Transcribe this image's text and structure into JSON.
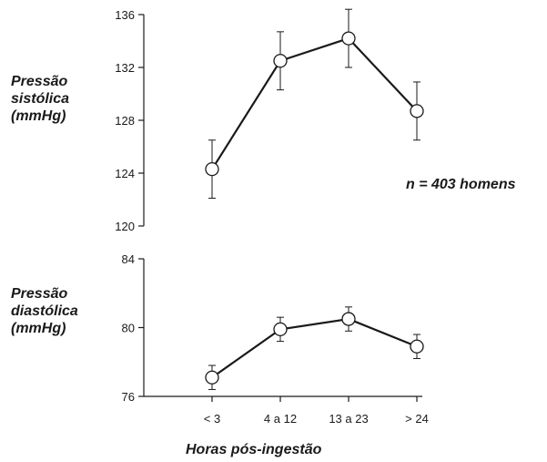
{
  "chart_data": [
    {
      "type": "line",
      "ylabel": "Pressão\nsistólica\n(mmHg)",
      "categories": [
        "< 3",
        "4 a 12",
        "13 a 23",
        "> 24"
      ],
      "values": [
        124.3,
        132.5,
        134.2,
        128.7
      ],
      "error_low": [
        122.1,
        130.3,
        132.0,
        126.5
      ],
      "error_high": [
        126.5,
        134.7,
        136.4,
        130.9
      ],
      "ylim": [
        120,
        136
      ],
      "yticks": [
        "120",
        "124",
        "128",
        "132",
        "136"
      ],
      "annotation": "n = 403 homens"
    },
    {
      "type": "line",
      "ylabel": "Pressão\ndiastólica\n(mmHg)",
      "categories": [
        "< 3",
        "4 a 12",
        "13 a 23",
        "> 24"
      ],
      "values": [
        77.1,
        79.9,
        80.5,
        78.9
      ],
      "error_low": [
        76.4,
        79.2,
        79.8,
        78.2
      ],
      "error_high": [
        77.8,
        80.6,
        81.2,
        79.6
      ],
      "ylim": [
        76,
        84
      ],
      "yticks": [
        "76",
        "80",
        "84"
      ]
    }
  ],
  "xlabel": "Horas pós-ingestão",
  "colors": {
    "line": "#1a1a1a",
    "marker_fill": "#ffffff"
  }
}
